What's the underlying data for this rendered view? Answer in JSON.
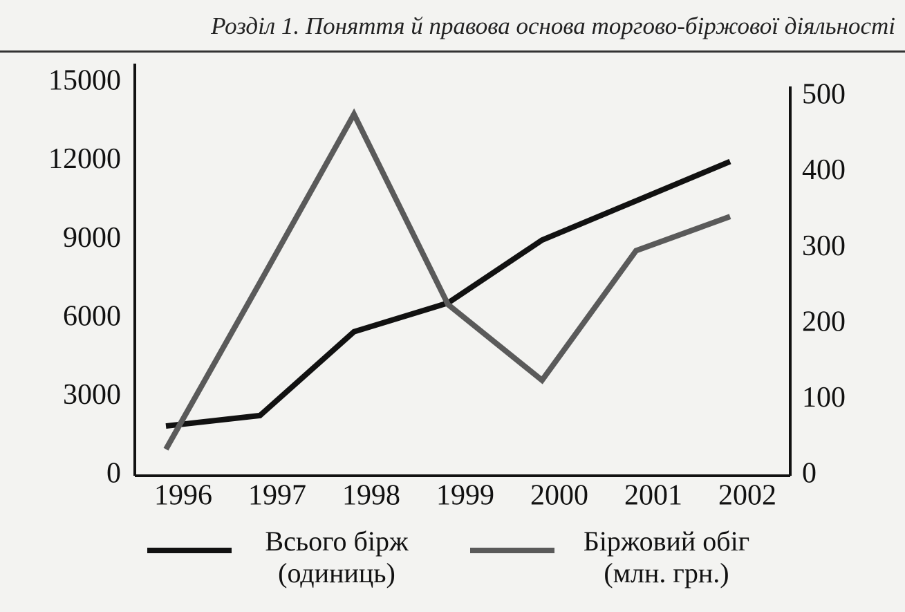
{
  "page_header": "Розділ 1. Поняття й правова основа торгово-біржової діяльності",
  "chart_data": {
    "type": "line",
    "categories": [
      "1996",
      "1997",
      "1998",
      "1999",
      "2000",
      "2001",
      "2002"
    ],
    "series": [
      {
        "name": "Всього бірж (одиниць)",
        "color": "#111111",
        "values": [
          1900,
          2300,
          5500,
          6600,
          9000,
          10500,
          12000
        ]
      },
      {
        "name": "Біржовий обіг (млн. грн.)",
        "color": "#5a5a5a",
        "axis": "y2",
        "values": [
          35,
          255,
          477,
          226,
          126,
          297,
          342
        ]
      }
    ],
    "ylim": [
      0,
      15000
    ],
    "yticks": [
      0,
      3000,
      6000,
      9000,
      12000,
      15000
    ],
    "y2lim": [
      0,
      500
    ],
    "y2ticks": [
      0,
      100,
      200,
      300,
      400,
      500
    ],
    "grid": false
  }
}
